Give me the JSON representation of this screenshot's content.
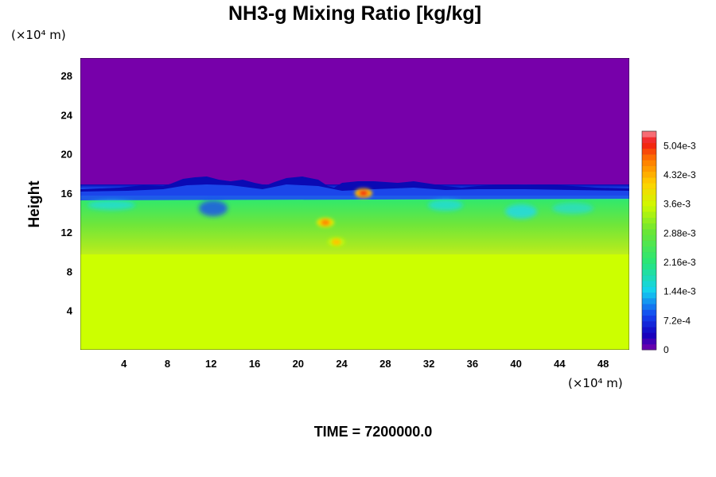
{
  "chart_data": {
    "type": "heatmap",
    "title": "NH3-g Mixing Ratio [kg/kg]",
    "xlabel": "",
    "ylabel": "Height",
    "x_unit": "(×10⁴ m)",
    "y_unit": "(×10⁴ m)",
    "xlim": [
      0,
      50.4
    ],
    "ylim": [
      0,
      29.8
    ],
    "x_ticks": [
      4,
      8,
      12,
      16,
      20,
      24,
      28,
      32,
      36,
      40,
      44,
      48
    ],
    "y_ticks": [
      4,
      8,
      12,
      16,
      20,
      24,
      28
    ],
    "colorbar": {
      "min": 0,
      "max": 0.0054,
      "levels": 38,
      "tick_values": [
        0,
        0.00072,
        0.00144,
        0.00216,
        0.00288,
        0.0036,
        0.00432,
        0.00504
      ],
      "tick_labels": [
        "0",
        "7.2e-4",
        "1.44e-3",
        "2.16e-3",
        "2.88e-3",
        "3.6e-3",
        "4.32e-3",
        "5.04e-3"
      ]
    },
    "regions": [
      {
        "from_height": 0,
        "to_height": 9.8,
        "value": 0.0034
      },
      {
        "from_height": 9.8,
        "to_height": 16.5,
        "value": 0.003
      },
      {
        "from_height": 16.5,
        "to_height": 29.8,
        "value": 0.0
      }
    ],
    "features": [
      {
        "x": 26,
        "y": 16,
        "value": 0.005
      },
      {
        "x": 22.5,
        "y": 13,
        "value": 0.0046
      },
      {
        "x": 23.5,
        "y": 11,
        "value": 0.0042
      }
    ]
  },
  "footer": {
    "time_label": "TIME = 7200000.0"
  }
}
